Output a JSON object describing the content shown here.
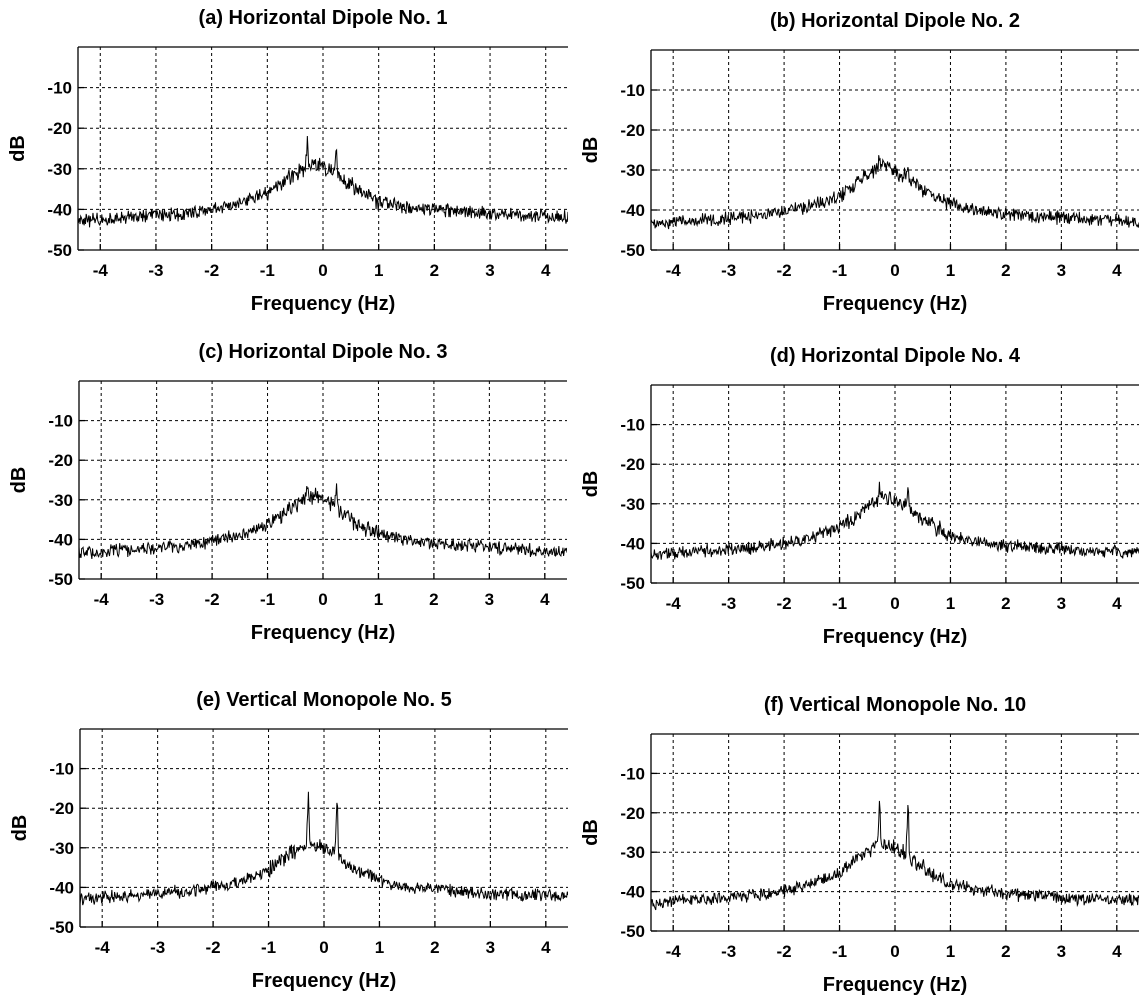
{
  "chart_data": [
    {
      "type": "line",
      "title": "(a) Horizontal Dipole No. 1",
      "xlabel": "Frequency (Hz)",
      "ylabel": "dB",
      "xlim": [
        -4.4,
        4.4
      ],
      "ylim": [
        -50,
        0
      ],
      "xticks": [
        -4,
        -3,
        -2,
        -1,
        0,
        1,
        2,
        3,
        4
      ],
      "xtick_labels": [
        "-4",
        "-3",
        "-2",
        "-1",
        "0",
        "1",
        "2",
        "3",
        "4"
      ],
      "yticks": [
        -10,
        -20,
        -30,
        -40,
        -50
      ],
      "ytick_labels": [
        "-10",
        "-20",
        "-30",
        "-40",
        "-50"
      ],
      "grid": true,
      "series": [
        {
          "x": [
            -4.4,
            -4.0,
            -3.5,
            -3.0,
            -2.5,
            -2.0,
            -1.5,
            -1.0,
            -0.75,
            -0.5,
            -0.32,
            -0.28,
            -0.25,
            -0.2,
            -0.1,
            0.0,
            0.1,
            0.2,
            0.24,
            0.26,
            0.3,
            0.5,
            0.75,
            1.0,
            1.5,
            2.0,
            2.5,
            3.0,
            3.5,
            4.0,
            4.4
          ],
          "y": [
            -43,
            -42.5,
            -42,
            -41.5,
            -41,
            -40,
            -38.5,
            -36,
            -34,
            -31,
            -30,
            -22.5,
            -29,
            -28.5,
            -29,
            -29.5,
            -30,
            -31,
            -23,
            -31,
            -32,
            -34,
            -36,
            -38,
            -39.5,
            -40,
            -40.5,
            -41,
            -41.5,
            -41.5,
            -42
          ]
        }
      ]
    },
    {
      "type": "line",
      "title": "(b) Horizontal Dipole No. 2",
      "xlabel": "Frequency (Hz)",
      "ylabel": "dB",
      "xlim": [
        -4.4,
        4.4
      ],
      "ylim": [
        -50,
        0
      ],
      "xticks": [
        -4,
        -3,
        -2,
        -1,
        0,
        1,
        2,
        3,
        4
      ],
      "xtick_labels": [
        "-4",
        "-3",
        "-2",
        "-1",
        "0",
        "1",
        "2",
        "3",
        "4"
      ],
      "yticks": [
        -10,
        -20,
        -30,
        -40,
        -50
      ],
      "ytick_labels": [
        "-10",
        "-20",
        "-30",
        "-40",
        "-50"
      ],
      "grid": true,
      "series": [
        {
          "x": [
            -4.4,
            -4.0,
            -3.5,
            -3.0,
            -2.5,
            -2.0,
            -1.5,
            -1.0,
            -0.75,
            -0.5,
            -0.32,
            -0.28,
            -0.25,
            -0.2,
            -0.1,
            0.0,
            0.1,
            0.2,
            0.24,
            0.26,
            0.3,
            0.5,
            0.75,
            1.0,
            1.5,
            2.0,
            2.5,
            3.0,
            3.5,
            4.0,
            4.4
          ],
          "y": [
            -43.5,
            -43,
            -42.5,
            -42,
            -41.5,
            -40.5,
            -39,
            -36.5,
            -34,
            -31.5,
            -30,
            -27,
            -29,
            -29,
            -30,
            -30.5,
            -31,
            -31.5,
            -28,
            -32,
            -33,
            -35,
            -37,
            -38.5,
            -40,
            -41,
            -41.5,
            -42,
            -42.5,
            -42.5,
            -43
          ]
        }
      ]
    },
    {
      "type": "line",
      "title": "(c) Horizontal Dipole No. 3",
      "xlabel": "Frequency (Hz)",
      "ylabel": "dB",
      "xlim": [
        -4.4,
        4.4
      ],
      "ylim": [
        -50,
        0
      ],
      "xticks": [
        -4,
        -3,
        -2,
        -1,
        0,
        1,
        2,
        3,
        4
      ],
      "xtick_labels": [
        "-4",
        "-3",
        "-2",
        "-1",
        "0",
        "1",
        "2",
        "3",
        "4"
      ],
      "yticks": [
        -10,
        -20,
        -30,
        -40,
        -50
      ],
      "ytick_labels": [
        "-10",
        "-20",
        "-30",
        "-40",
        "-50"
      ],
      "grid": true,
      "series": [
        {
          "x": [
            -4.4,
            -4.0,
            -3.5,
            -3.0,
            -2.5,
            -2.0,
            -1.5,
            -1.0,
            -0.75,
            -0.5,
            -0.32,
            -0.28,
            -0.25,
            -0.2,
            -0.1,
            0.0,
            0.1,
            0.2,
            0.24,
            0.26,
            0.3,
            0.5,
            0.75,
            1.0,
            1.5,
            2.0,
            2.5,
            3.0,
            3.5,
            4.0,
            4.4
          ],
          "y": [
            -43.5,
            -43,
            -42.5,
            -42,
            -41.5,
            -40.5,
            -39,
            -36.5,
            -34,
            -31.5,
            -30,
            -25.5,
            -29.5,
            -29,
            -29.5,
            -30,
            -31,
            -31.5,
            -26,
            -32,
            -33,
            -35,
            -37,
            -38.5,
            -40,
            -41,
            -41.5,
            -42,
            -42.5,
            -43,
            -43
          ]
        }
      ]
    },
    {
      "type": "line",
      "title": "(d) Horizontal Dipole No. 4",
      "xlabel": "Frequency (Hz)",
      "ylabel": "dB",
      "xlim": [
        -4.4,
        4.4
      ],
      "ylim": [
        -50,
        0
      ],
      "xticks": [
        -4,
        -3,
        -2,
        -1,
        0,
        1,
        2,
        3,
        4
      ],
      "xtick_labels": [
        "-4",
        "-3",
        "-2",
        "-1",
        "0",
        "1",
        "2",
        "3",
        "4"
      ],
      "yticks": [
        -10,
        -20,
        -30,
        -40,
        -50
      ],
      "ytick_labels": [
        "-10",
        "-20",
        "-30",
        "-40",
        "-50"
      ],
      "grid": true,
      "series": [
        {
          "x": [
            -4.4,
            -4.0,
            -3.5,
            -3.0,
            -2.5,
            -2.0,
            -1.5,
            -1.0,
            -0.75,
            -0.5,
            -0.32,
            -0.28,
            -0.25,
            -0.2,
            -0.1,
            0.0,
            0.1,
            0.2,
            0.24,
            0.26,
            0.3,
            0.5,
            0.75,
            1.0,
            1.5,
            2.0,
            2.5,
            3.0,
            3.5,
            4.0,
            4.4
          ],
          "y": [
            -43,
            -42.5,
            -42,
            -41.5,
            -41,
            -40,
            -38.5,
            -36,
            -33.5,
            -30.5,
            -29,
            -26.5,
            -28,
            -28,
            -28.5,
            -29.5,
            -30,
            -30.5,
            -27,
            -31,
            -32,
            -34,
            -36,
            -38,
            -39.5,
            -40.5,
            -41,
            -41.5,
            -42,
            -42,
            -42
          ]
        }
      ]
    },
    {
      "type": "line",
      "title": "(e) Vertical Monopole No. 5",
      "xlabel": "Frequency (Hz)",
      "ylabel": "dB",
      "xlim": [
        -4.4,
        4.4
      ],
      "ylim": [
        -50,
        0
      ],
      "xticks": [
        -4,
        -3,
        -2,
        -1,
        0,
        1,
        2,
        3,
        4
      ],
      "xtick_labels": [
        "-4",
        "-3",
        "-2",
        "-1",
        "0",
        "1",
        "2",
        "3",
        "4"
      ],
      "yticks": [
        -10,
        -20,
        -30,
        -40,
        -50
      ],
      "ytick_labels": [
        "-10",
        "-20",
        "-30",
        "-40",
        "-50"
      ],
      "grid": true,
      "series": [
        {
          "x": [
            -4.4,
            -4.0,
            -3.5,
            -3.0,
            -2.5,
            -2.0,
            -1.5,
            -1.0,
            -0.75,
            -0.5,
            -0.32,
            -0.28,
            -0.25,
            -0.2,
            -0.1,
            0.0,
            0.1,
            0.2,
            0.24,
            0.26,
            0.3,
            0.5,
            0.75,
            1.0,
            1.5,
            2.0,
            2.5,
            3.0,
            3.5,
            4.0,
            4.4
          ],
          "y": [
            -43,
            -42.5,
            -42,
            -41.5,
            -41,
            -40,
            -38.5,
            -35.5,
            -33,
            -30.5,
            -29.5,
            -16.5,
            -29,
            -29,
            -29.5,
            -30,
            -30.5,
            -31,
            -16.5,
            -31.5,
            -33,
            -35,
            -37,
            -38.5,
            -40,
            -40.5,
            -41,
            -41.5,
            -42,
            -42,
            -42.5
          ]
        }
      ]
    },
    {
      "type": "line",
      "title": "(f) Vertical Monopole No. 10",
      "xlabel": "Frequency (Hz)",
      "ylabel": "dB",
      "xlim": [
        -4.4,
        4.4
      ],
      "ylim": [
        -50,
        0
      ],
      "xticks": [
        -4,
        -3,
        -2,
        -1,
        0,
        1,
        2,
        3,
        4
      ],
      "xtick_labels": [
        "-4",
        "-3",
        "-2",
        "-1",
        "0",
        "1",
        "2",
        "3",
        "4"
      ],
      "yticks": [
        -10,
        -20,
        -30,
        -40,
        -50
      ],
      "ytick_labels": [
        "-10",
        "-20",
        "-30",
        "-40",
        "-50"
      ],
      "grid": true,
      "series": [
        {
          "x": [
            -4.4,
            -4.0,
            -3.5,
            -3.0,
            -2.5,
            -2.0,
            -1.5,
            -1.0,
            -0.75,
            -0.5,
            -0.32,
            -0.28,
            -0.25,
            -0.2,
            -0.1,
            0.0,
            0.1,
            0.2,
            0.24,
            0.26,
            0.3,
            0.5,
            0.75,
            1.0,
            1.5,
            2.0,
            2.5,
            3.0,
            3.5,
            4.0,
            4.4
          ],
          "y": [
            -43,
            -42.5,
            -42,
            -41.5,
            -41,
            -40,
            -38,
            -35,
            -32.5,
            -29.5,
            -28.5,
            -16.5,
            -28,
            -28,
            -28.5,
            -29,
            -29.5,
            -30,
            -16.5,
            -30.5,
            -32,
            -34,
            -36,
            -38,
            -39.5,
            -40.5,
            -41,
            -41.5,
            -42,
            -42,
            -42
          ]
        }
      ]
    }
  ]
}
